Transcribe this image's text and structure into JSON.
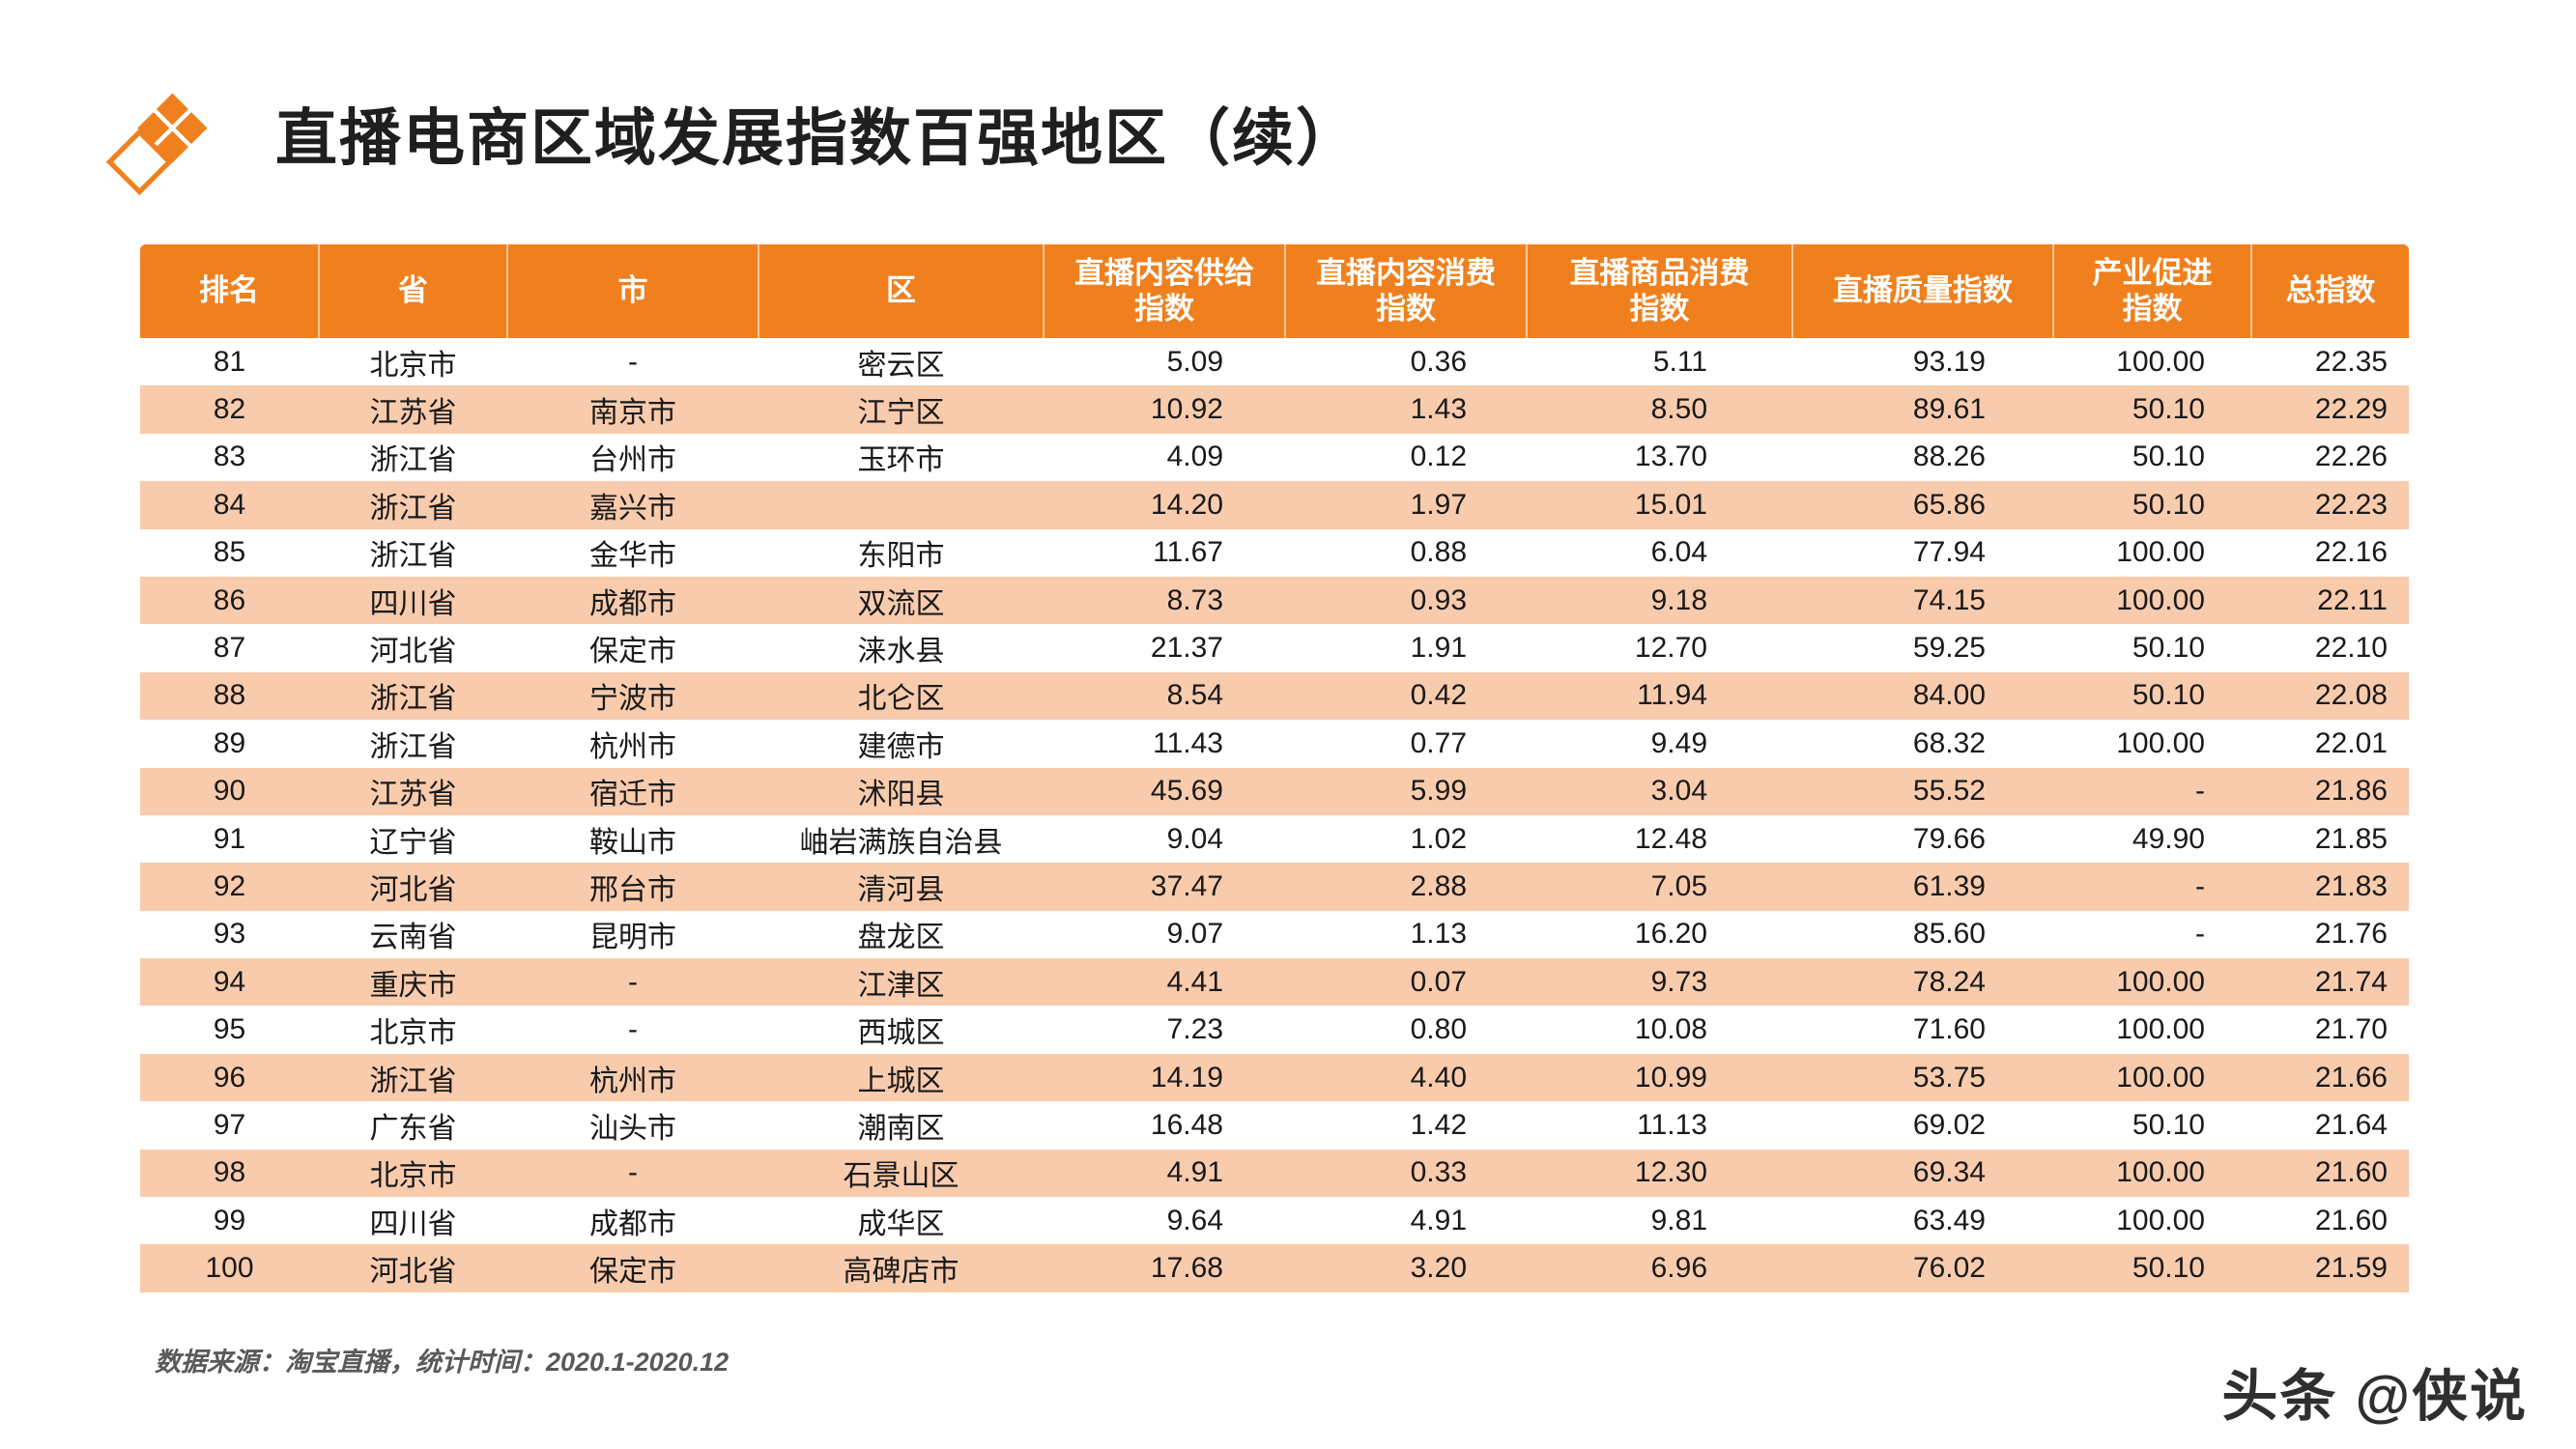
{
  "page": {
    "title": "直播电商区域发展指数百强地区（续）",
    "footer_note": "数据来源：淘宝直播，统计时间：2020.1-2020.12",
    "watermark": "头条 @侠说"
  },
  "colors": {
    "accent": "#F0801E",
    "header_bg": "#F0801E",
    "row_alt_bg": "#F8CBAD",
    "text": "#1A1A1A"
  },
  "chart_data": {
    "type": "table",
    "title": "直播电商区域发展指数百强地区（续）",
    "columns": [
      "排名",
      "省",
      "市",
      "区",
      "直播内容供给\n指数",
      "直播内容消费\n指数",
      "直播商品消费\n指数",
      "直播质量指数",
      "产业促进\n指数",
      "总指数"
    ],
    "rows": [
      [
        "81",
        "北京市",
        "-",
        "密云区",
        "5.09",
        "0.36",
        "5.11",
        "93.19",
        "100.00",
        "22.35"
      ],
      [
        "82",
        "江苏省",
        "南京市",
        "江宁区",
        "10.92",
        "1.43",
        "8.50",
        "89.61",
        "50.10",
        "22.29"
      ],
      [
        "83",
        "浙江省",
        "台州市",
        "玉环市",
        "4.09",
        "0.12",
        "13.70",
        "88.26",
        "50.10",
        "22.26"
      ],
      [
        "84",
        "浙江省",
        "嘉兴市",
        "",
        "14.20",
        "1.97",
        "15.01",
        "65.86",
        "50.10",
        "22.23"
      ],
      [
        "85",
        "浙江省",
        "金华市",
        "东阳市",
        "11.67",
        "0.88",
        "6.04",
        "77.94",
        "100.00",
        "22.16"
      ],
      [
        "86",
        "四川省",
        "成都市",
        "双流区",
        "8.73",
        "0.93",
        "9.18",
        "74.15",
        "100.00",
        "22.11"
      ],
      [
        "87",
        "河北省",
        "保定市",
        "涞水县",
        "21.37",
        "1.91",
        "12.70",
        "59.25",
        "50.10",
        "22.10"
      ],
      [
        "88",
        "浙江省",
        "宁波市",
        "北仑区",
        "8.54",
        "0.42",
        "11.94",
        "84.00",
        "50.10",
        "22.08"
      ],
      [
        "89",
        "浙江省",
        "杭州市",
        "建德市",
        "11.43",
        "0.77",
        "9.49",
        "68.32",
        "100.00",
        "22.01"
      ],
      [
        "90",
        "江苏省",
        "宿迁市",
        "沭阳县",
        "45.69",
        "5.99",
        "3.04",
        "55.52",
        "-",
        "21.86"
      ],
      [
        "91",
        "辽宁省",
        "鞍山市",
        "岫岩满族自治县",
        "9.04",
        "1.02",
        "12.48",
        "79.66",
        "49.90",
        "21.85"
      ],
      [
        "92",
        "河北省",
        "邢台市",
        "清河县",
        "37.47",
        "2.88",
        "7.05",
        "61.39",
        "-",
        "21.83"
      ],
      [
        "93",
        "云南省",
        "昆明市",
        "盘龙区",
        "9.07",
        "1.13",
        "16.20",
        "85.60",
        "-",
        "21.76"
      ],
      [
        "94",
        "重庆市",
        "-",
        "江津区",
        "4.41",
        "0.07",
        "9.73",
        "78.24",
        "100.00",
        "21.74"
      ],
      [
        "95",
        "北京市",
        "-",
        "西城区",
        "7.23",
        "0.80",
        "10.08",
        "71.60",
        "100.00",
        "21.70"
      ],
      [
        "96",
        "浙江省",
        "杭州市",
        "上城区",
        "14.19",
        "4.40",
        "10.99",
        "53.75",
        "100.00",
        "21.66"
      ],
      [
        "97",
        "广东省",
        "汕头市",
        "潮南区",
        "16.48",
        "1.42",
        "11.13",
        "69.02",
        "50.10",
        "21.64"
      ],
      [
        "98",
        "北京市",
        "-",
        "石景山区",
        "4.91",
        "0.33",
        "12.30",
        "69.34",
        "100.00",
        "21.60"
      ],
      [
        "99",
        "四川省",
        "成都市",
        "成华区",
        "9.64",
        "4.91",
        "9.81",
        "63.49",
        "100.00",
        "21.60"
      ],
      [
        "100",
        "河北省",
        "保定市",
        "高碑店市",
        "17.68",
        "3.20",
        "6.96",
        "76.02",
        "50.10",
        "21.59"
      ]
    ]
  }
}
